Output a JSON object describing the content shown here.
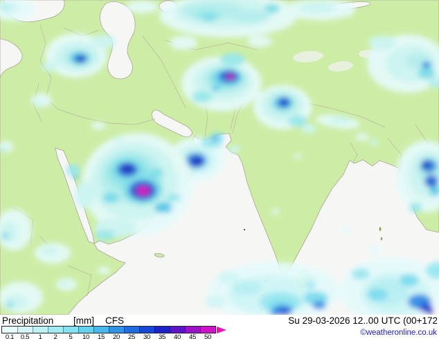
{
  "legend": {
    "title": "Precipitation",
    "unit": "[mm]",
    "model": "CFS",
    "datetime": "Su 29-03-2026 12..00 UTC (00+172",
    "copyright": "©weatheronline.co.uk"
  },
  "scale": {
    "values": [
      "0.1",
      "0.5",
      "1",
      "2",
      "5",
      "10",
      "15",
      "20",
      "25",
      "30",
      "35",
      "40",
      "45",
      "50"
    ],
    "colors": [
      "#e8fbfc",
      "#d4f6f8",
      "#bdf1f4",
      "#a3ebf2",
      "#86e2f0",
      "#65d3ee",
      "#47b9ec",
      "#2f93e8",
      "#1f6ce2",
      "#1746d8",
      "#1b22c8",
      "#5b15c9",
      "#9a13cb",
      "#cd12c9"
    ],
    "arrow_color": "#ef11b6"
  },
  "map_colors": {
    "land": "#cdeda6",
    "sea": "#f6f7f5",
    "coastline": "#a9a493",
    "country_border": "#b9b29e"
  }
}
